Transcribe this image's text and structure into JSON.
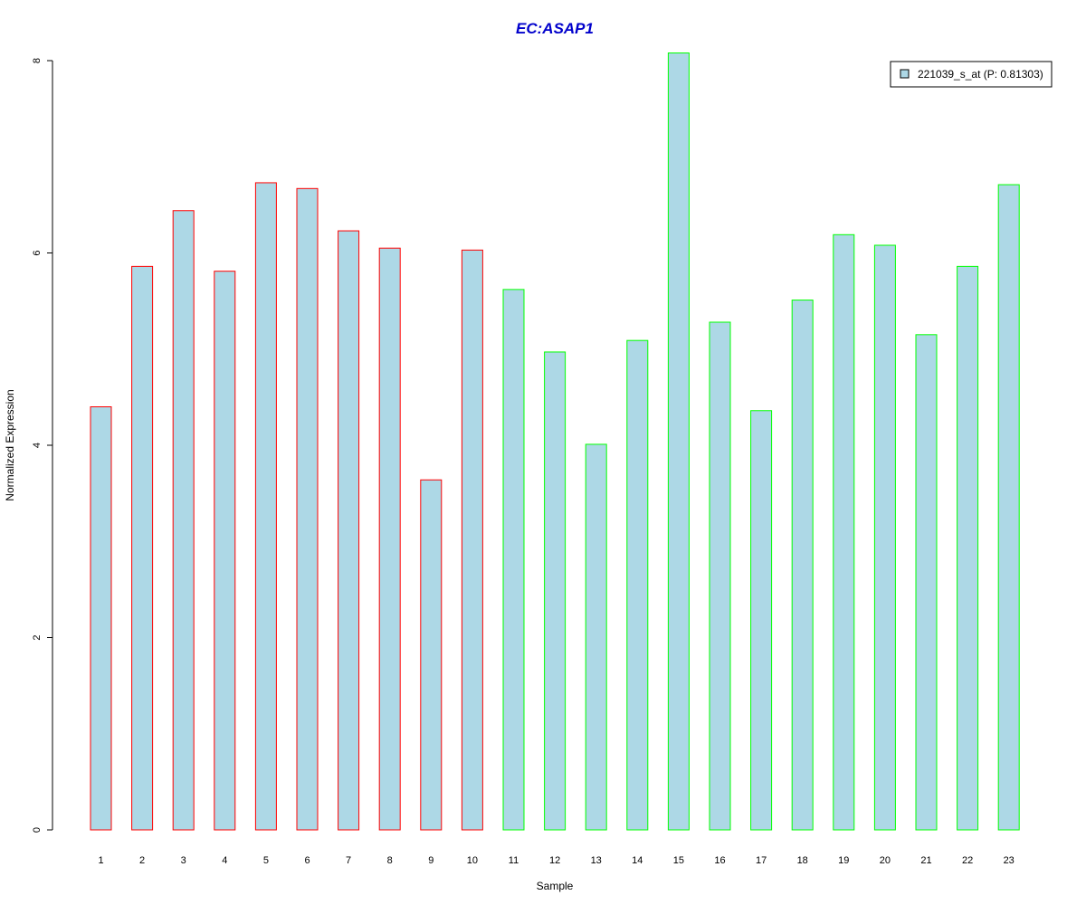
{
  "colors": {
    "bar_fill": "#add8e6",
    "group1_border": "#ff0000",
    "group2_border": "#00ff00",
    "title": "#0000cc"
  },
  "chart_data": {
    "type": "bar",
    "title": "EC:ASAP1",
    "xlabel": "Sample",
    "ylabel": "Normalized Expression",
    "ylim": [
      0,
      8
    ],
    "yticks": [
      "0",
      "2",
      "4",
      "6",
      "8"
    ],
    "categories": [
      "1",
      "2",
      "3",
      "4",
      "5",
      "6",
      "7",
      "8",
      "9",
      "10",
      "11",
      "12",
      "13",
      "14",
      "15",
      "16",
      "17",
      "18",
      "19",
      "20",
      "21",
      "22",
      "23"
    ],
    "series": [
      {
        "name": "221039_s_at (P: 0.81303)",
        "values": [
          4.4,
          5.86,
          6.44,
          5.81,
          6.73,
          6.67,
          6.23,
          6.05,
          3.64,
          6.03,
          5.62,
          4.97,
          4.01,
          5.09,
          8.08,
          5.28,
          4.36,
          5.51,
          6.19,
          6.08,
          5.15,
          5.86,
          6.71
        ],
        "groups": [
          1,
          1,
          1,
          1,
          1,
          1,
          1,
          1,
          1,
          1,
          2,
          2,
          2,
          2,
          2,
          2,
          2,
          2,
          2,
          2,
          2,
          2,
          2
        ]
      }
    ],
    "grid": false,
    "legend_position": "top-right"
  }
}
